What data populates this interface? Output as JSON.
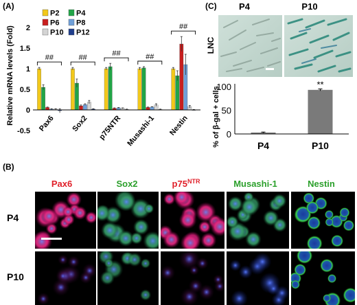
{
  "panels": {
    "a_label": "(A)",
    "b_label": "(B)",
    "c_label": "(C)"
  },
  "chart_data": [
    {
      "type": "bar",
      "ylabel": "Relative mRNA levels (Fold)",
      "xlabel": "",
      "ylim": [
        -0.5,
        2
      ],
      "yticks": [
        "-0.5",
        "0",
        "0.5",
        "1",
        "1.5",
        "2"
      ],
      "categories": [
        "Pax6",
        "Sox2",
        "p75NTR",
        "Musashi-1",
        "Nestin"
      ],
      "series": [
        {
          "name": "P2",
          "color": "#f2c81b",
          "values": [
            1.0,
            1.0,
            1.0,
            1.0,
            1.0
          ],
          "errors": [
            0.03,
            0.03,
            0.03,
            0.03,
            0.03
          ]
        },
        {
          "name": "P4",
          "color": "#21a547",
          "values": [
            0.55,
            0.65,
            1.05,
            1.02,
            0.83
          ],
          "errors": [
            0.06,
            0.1,
            0.08,
            0.03,
            0.12
          ]
        },
        {
          "name": "P6",
          "color": "#c81e1e",
          "values": [
            0.06,
            0.1,
            0.04,
            0.06,
            1.6
          ],
          "errors": [
            0.01,
            0.02,
            0.01,
            0.01,
            0.18
          ]
        },
        {
          "name": "P8",
          "color": "#6f9fd8",
          "values": [
            0.02,
            0.13,
            0.05,
            0.07,
            1.1
          ],
          "errors": [
            0.01,
            0.02,
            0.01,
            0.01,
            0.25
          ]
        },
        {
          "name": "P10",
          "color": "#d4d4d4",
          "values": [
            0.02,
            0.19,
            0.04,
            0.12,
            0.08
          ],
          "errors": [
            0.01,
            0.04,
            0.01,
            0.03,
            0.03
          ]
        },
        {
          "name": "P12",
          "color": "#1f3e8c",
          "values": [
            -0.02,
            0.02,
            0.01,
            0.01,
            0.0
          ],
          "errors": [
            0.05,
            0.01,
            0.01,
            0.01,
            0.01
          ]
        }
      ],
      "legend_position": "top-left",
      "annotations": [
        {
          "category": "Pax6",
          "text": "##"
        },
        {
          "category": "Sox2",
          "text": "##"
        },
        {
          "category": "p75NTR",
          "text": "##"
        },
        {
          "category": "Musashi-1",
          "text": "##"
        },
        {
          "category": "Nestin",
          "text": "##"
        }
      ]
    },
    {
      "type": "bar",
      "ylabel": "% of β-gal + cells",
      "xlabel": "",
      "ylim": [
        0,
        100
      ],
      "yticks": [
        "0",
        "50",
        "100"
      ],
      "categories": [
        "P4",
        "P10"
      ],
      "values": [
        3,
        93
      ],
      "errors": [
        1,
        2
      ],
      "color": "#7a7a7a",
      "annotations": [
        {
          "category": "P10",
          "text": "**"
        }
      ]
    }
  ],
  "panel_c": {
    "image_labels": [
      "P4",
      "P10"
    ],
    "side_label": "LNC"
  },
  "panel_b": {
    "column_headers": [
      "Pax6",
      "Sox2",
      "p75",
      "NTR",
      "Musashi-1",
      "Nestin"
    ],
    "row_labels": [
      "P4",
      "P10"
    ]
  },
  "colors": {
    "red_label": "#e0202a",
    "green_label": "#2ca02c"
  }
}
